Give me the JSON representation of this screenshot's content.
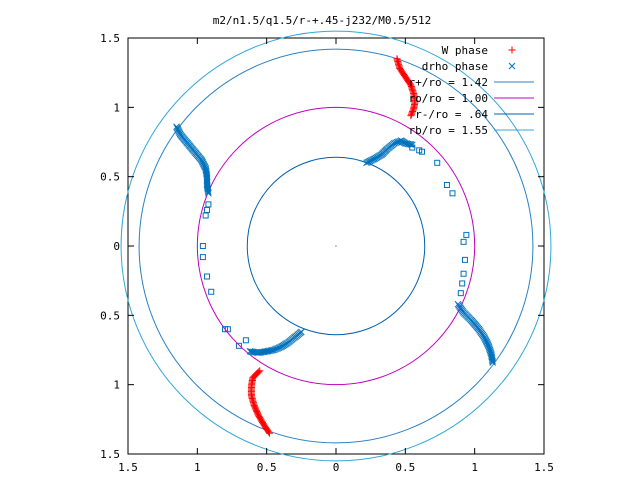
{
  "chart_data": {
    "type": "scatter",
    "title": "m2/n1.5/q1.5/r-+.45-j232/M0.5/512",
    "xlabel": "",
    "ylabel": "",
    "xlim": [
      -1.5,
      1.5
    ],
    "ylim": [
      -1.5,
      1.5
    ],
    "x_ticks": [
      "1.5",
      "1",
      "0.5",
      "0",
      "0.5",
      "1",
      "1.5"
    ],
    "y_ticks": [
      "1.5",
      "1",
      "0.5",
      "0",
      "0.5",
      "1",
      "1.5"
    ],
    "grid": false,
    "legend_position": "top-right",
    "colors": {
      "w_phase": "#ff0000",
      "drho_phase": "#0072bd",
      "ring_r142": "#2a82c6",
      "ring_r100": "#c000c0",
      "ring_r064": "#0060b0",
      "ring_r155": "#30a8d8"
    },
    "series": [
      {
        "name": "W phase",
        "marker": "plus",
        "arms": [
          [
            [
              0.44,
              1.35
            ],
            [
              0.46,
              1.28
            ],
            [
              0.5,
              1.22
            ],
            [
              0.54,
              1.16
            ],
            [
              0.56,
              1.1
            ],
            [
              0.57,
              1.04
            ],
            [
              0.56,
              0.99
            ],
            [
              0.54,
              0.94
            ]
          ],
          [
            [
              -0.48,
              -1.35
            ],
            [
              -0.52,
              -1.29
            ],
            [
              -0.56,
              -1.22
            ],
            [
              -0.59,
              -1.15
            ],
            [
              -0.61,
              -1.08
            ],
            [
              -0.61,
              -1.01
            ],
            [
              -0.6,
              -0.95
            ],
            [
              -0.55,
              -0.9
            ]
          ]
        ]
      },
      {
        "name": "drho phase",
        "marker": "cross",
        "arms": [
          [
            [
              -1.15,
              0.86
            ],
            [
              -1.12,
              0.8
            ],
            [
              -1.07,
              0.74
            ],
            [
              -1.02,
              0.68
            ],
            [
              -0.97,
              0.62
            ],
            [
              -0.94,
              0.56
            ],
            [
              -0.93,
              0.5
            ],
            [
              -0.93,
              0.44
            ],
            [
              -0.92,
              0.38
            ]
          ],
          [
            [
              0.88,
              -0.42
            ],
            [
              0.92,
              -0.48
            ],
            [
              0.98,
              -0.54
            ],
            [
              1.03,
              -0.6
            ],
            [
              1.07,
              -0.66
            ],
            [
              1.1,
              -0.72
            ],
            [
              1.12,
              -0.78
            ],
            [
              1.13,
              -0.84
            ]
          ],
          [
            [
              0.22,
              0.6
            ],
            [
              0.28,
              0.63
            ],
            [
              0.33,
              0.66
            ],
            [
              0.37,
              0.7
            ],
            [
              0.42,
              0.74
            ],
            [
              0.47,
              0.76
            ],
            [
              0.5,
              0.74
            ],
            [
              0.55,
              0.73
            ]
          ],
          [
            [
              -0.25,
              -0.62
            ],
            [
              -0.3,
              -0.66
            ],
            [
              -0.35,
              -0.7
            ],
            [
              -0.4,
              -0.73
            ],
            [
              -0.45,
              -0.75
            ],
            [
              -0.5,
              -0.76
            ],
            [
              -0.56,
              -0.77
            ],
            [
              -0.62,
              -0.76
            ]
          ]
        ],
        "scatter": [
          [
            0.73,
            0.6
          ],
          [
            0.8,
            0.44
          ],
          [
            0.84,
            0.38
          ],
          [
            0.94,
            0.08
          ],
          [
            0.92,
            0.03
          ],
          [
            0.93,
            -0.1
          ],
          [
            0.92,
            -0.2
          ],
          [
            0.91,
            -0.27
          ],
          [
            0.9,
            -0.34
          ],
          [
            -0.65,
            -0.68
          ],
          [
            -0.7,
            -0.72
          ],
          [
            -0.78,
            -0.6
          ],
          [
            -0.8,
            -0.6
          ],
          [
            -0.9,
            -0.33
          ],
          [
            -0.93,
            -0.22
          ],
          [
            -0.96,
            0.0
          ],
          [
            -0.96,
            -0.08
          ],
          [
            -0.94,
            0.22
          ],
          [
            -0.93,
            0.26
          ],
          [
            -0.92,
            0.3
          ],
          [
            0.6,
            0.69
          ],
          [
            0.55,
            0.71
          ],
          [
            0.62,
            0.68
          ]
        ]
      }
    ],
    "rings": [
      {
        "name": "r+/ro = 1.42",
        "r": 1.42
      },
      {
        "name": "ro/ro = 1.00",
        "r": 1.0
      },
      {
        "name": "r-/ro = .64",
        "r": 0.64
      },
      {
        "name": "rb/ro = 1.55",
        "r": 1.55
      }
    ]
  }
}
